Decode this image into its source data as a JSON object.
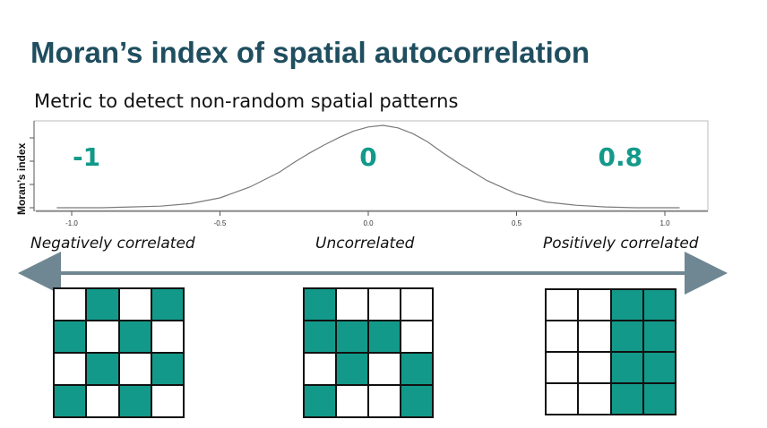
{
  "title": "Moran’s index of spatial autocorrelation",
  "subtitle": "Metric to detect non-random spatial patterns",
  "accent_color": "#13998a",
  "title_color": "#1f4e5f",
  "arrow_color": "#6f8792",
  "chart_data": {
    "type": "line",
    "title": "",
    "xlabel": "",
    "ylabel": "Moran’s index",
    "xlim": [
      -1.05,
      1.05
    ],
    "x_ticks": [
      "-1.0",
      "-0.5",
      "0.0",
      "0.5",
      "1.0"
    ],
    "series": [
      {
        "x": [
          -1.05,
          -0.9,
          -0.8,
          -0.7,
          -0.6,
          -0.5,
          -0.4,
          -0.3,
          -0.25,
          -0.2,
          -0.15,
          -0.1,
          -0.05,
          0.0,
          0.05,
          0.1,
          0.15,
          0.2,
          0.25,
          0.3,
          0.4,
          0.5,
          0.6,
          0.7,
          0.8,
          0.9,
          1.05
        ],
        "y": [
          0.0,
          0.0,
          0.01,
          0.02,
          0.05,
          0.12,
          0.25,
          0.43,
          0.55,
          0.66,
          0.76,
          0.85,
          0.93,
          0.98,
          1.0,
          0.97,
          0.9,
          0.8,
          0.67,
          0.55,
          0.33,
          0.17,
          0.07,
          0.03,
          0.01,
          0.0,
          0.0
        ]
      }
    ],
    "annotations": [
      {
        "text": "-1",
        "x": -0.95
      },
      {
        "text": "0",
        "x": 0.0
      },
      {
        "text": "0.8",
        "x": 0.85
      }
    ]
  },
  "labels": {
    "negative": "Negatively correlated",
    "uncorrelated": "Uncorrelated",
    "positive": "Positively correlated"
  },
  "grids": {
    "negative": [
      [
        0,
        1,
        0,
        1
      ],
      [
        1,
        0,
        1,
        0
      ],
      [
        0,
        1,
        0,
        1
      ],
      [
        1,
        0,
        1,
        0
      ]
    ],
    "uncorrelated": [
      [
        1,
        0,
        0,
        0
      ],
      [
        1,
        1,
        1,
        0
      ],
      [
        0,
        1,
        0,
        1
      ],
      [
        1,
        0,
        0,
        1
      ]
    ],
    "positive": [
      [
        0,
        0,
        1,
        1
      ],
      [
        0,
        0,
        1,
        1
      ],
      [
        0,
        0,
        1,
        1
      ],
      [
        0,
        0,
        1,
        1
      ]
    ]
  }
}
